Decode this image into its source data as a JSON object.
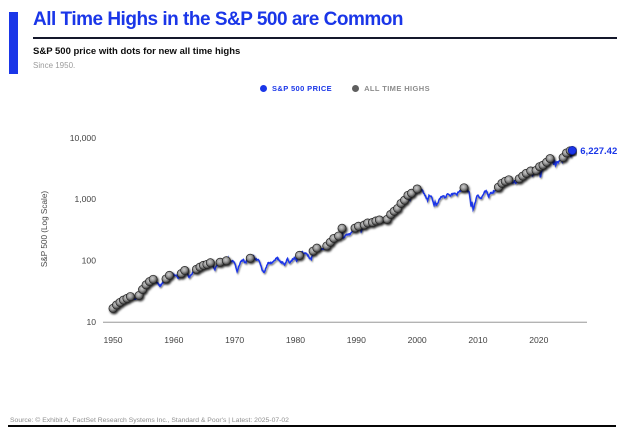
{
  "colors": {
    "accent": "#1a36e8",
    "dot_gray": "#5f5f5f",
    "legend_gray_text": "#8c8c8c",
    "axis_line_gray": "#b3b3b3",
    "tick_text": "#434343"
  },
  "header": {
    "title": "All Time Highs in the S&P 500 are Common",
    "subtitle": "S&P 500 price with dots for new all time highs",
    "since": "Since 1950."
  },
  "legend": [
    {
      "label": "S&P 500 PRICE"
    },
    {
      "label": "ALL TIME HIGHS"
    }
  ],
  "footer": {
    "source": "Source: © Exhibit A, FactSet Research Systems Inc., Standard & Poor's | Latest: 2025-07-02"
  },
  "chart_data": {
    "type": "line",
    "title": "All Time Highs in the S&P 500 are Common",
    "subtitle": "S&P 500 price with dots for new all time highs",
    "ylabel": "S&P 500 (Log Scale)",
    "yscale": "log",
    "xlim": [
      1948.4,
      2027.9
    ],
    "ylim": [
      10,
      22000
    ],
    "grid": "bottom-axis-only",
    "legend_position": "top-center",
    "x_axis": {
      "ticks": [
        1950,
        1960,
        1970,
        1980,
        1990,
        2000,
        2010,
        2020
      ]
    },
    "y_axis": {
      "ticks": [
        {
          "value": 10000,
          "label": "10,000"
        },
        {
          "value": 1000,
          "label": "1,000"
        },
        {
          "value": 100,
          "label": "100"
        },
        {
          "value": 10,
          "label": "10"
        }
      ]
    },
    "markers": {
      "name": "All Time Highs",
      "rule": "gray dot wherever the price sets a new all-time high"
    },
    "last_point": {
      "year": 2025.5,
      "value": 6227.42
    },
    "last_value_label": "6,227.42",
    "series": [
      {
        "name": "S&P 500 Price",
        "points": [
          [
            1950,
            16.7
          ],
          [
            1950.5,
            18.7
          ],
          [
            1951,
            20.4
          ],
          [
            1951.5,
            22
          ],
          [
            1952,
            23.8
          ],
          [
            1952.5,
            24.5
          ],
          [
            1953,
            26.6
          ],
          [
            1953.6,
            23.5
          ],
          [
            1954,
            24.8
          ],
          [
            1954.5,
            29
          ],
          [
            1955,
            36
          ],
          [
            1955.5,
            41
          ],
          [
            1956,
            45.5
          ],
          [
            1956.6,
            49.6
          ],
          [
            1957,
            46.7
          ],
          [
            1957.8,
            39
          ],
          [
            1958,
            40.3
          ],
          [
            1958.5,
            47
          ],
          [
            1959,
            55.2
          ],
          [
            1959.6,
            60.5
          ],
          [
            1960,
            59.9
          ],
          [
            1960.8,
            52.3
          ],
          [
            1961,
            58.1
          ],
          [
            1961.5,
            66
          ],
          [
            1962,
            71.6
          ],
          [
            1962.5,
            52.3
          ],
          [
            1963,
            63.1
          ],
          [
            1963.5,
            70
          ],
          [
            1964,
            75
          ],
          [
            1964.5,
            81
          ],
          [
            1965,
            84.8
          ],
          [
            1965.5,
            87
          ],
          [
            1966,
            92.4
          ],
          [
            1966.15,
            94.1
          ],
          [
            1966.75,
            73.2
          ],
          [
            1967,
            80.3
          ],
          [
            1967.75,
            97.6
          ],
          [
            1968,
            96.5
          ],
          [
            1968.2,
            87.7
          ],
          [
            1968.92,
            108.4
          ],
          [
            1969,
            103.9
          ],
          [
            1969.6,
            97
          ],
          [
            1970,
            92.1
          ],
          [
            1970.4,
            69.3
          ],
          [
            1971,
            92.2
          ],
          [
            1971.35,
            104.8
          ],
          [
            1971.85,
            90.2
          ],
          [
            1972,
            102.1
          ],
          [
            1972.5,
            108
          ],
          [
            1973.03,
            120.2
          ],
          [
            1973.5,
            104
          ],
          [
            1974,
            97.6
          ],
          [
            1974.75,
            62.3
          ],
          [
            1975,
            68.6
          ],
          [
            1975.55,
            95.2
          ],
          [
            1976,
            90.2
          ],
          [
            1976.75,
            107.8
          ],
          [
            1977,
            107.5
          ],
          [
            1977.9,
            92.3
          ],
          [
            1978.2,
            86.9
          ],
          [
            1978.7,
            107
          ],
          [
            1979,
            96.1
          ],
          [
            1979.8,
            111.3
          ],
          [
            1980,
            107.9
          ],
          [
            1980.25,
            98.2
          ],
          [
            1980.92,
            140.5
          ],
          [
            1981,
            135.8
          ],
          [
            1981.6,
            130
          ],
          [
            1982,
            122.6
          ],
          [
            1982.6,
            102.4
          ],
          [
            1982.9,
            143
          ],
          [
            1983,
            140.6
          ],
          [
            1983.8,
            172
          ],
          [
            1984,
            164.9
          ],
          [
            1984.55,
            147.8
          ],
          [
            1985,
            167.2
          ],
          [
            1985.5,
            190
          ],
          [
            1986,
            211.3
          ],
          [
            1986.5,
            245
          ],
          [
            1987,
            242.2
          ],
          [
            1987.65,
            336.8
          ],
          [
            1987.8,
            225
          ],
          [
            1988,
            247.1
          ],
          [
            1988.5,
            270
          ],
          [
            1989,
            277.7
          ],
          [
            1989.5,
            320
          ],
          [
            1990,
            353.4
          ],
          [
            1990.55,
            368.9
          ],
          [
            1990.8,
            295.5
          ],
          [
            1991,
            330.2
          ],
          [
            1991.3,
            380
          ],
          [
            1992,
            417.1
          ],
          [
            1992.5,
            410
          ],
          [
            1993,
            435.7
          ],
          [
            1993.5,
            450
          ],
          [
            1994,
            466.5
          ],
          [
            1994.3,
            438.9
          ],
          [
            1995,
            459.3
          ],
          [
            1995.5,
            545
          ],
          [
            1996,
            615.9
          ],
          [
            1996.55,
            670
          ],
          [
            1997,
            740.7
          ],
          [
            1997.55,
            930
          ],
          [
            1998,
            970.4
          ],
          [
            1998.55,
            1186.8
          ],
          [
            1998.8,
            957.3
          ],
          [
            1999,
            1229.2
          ],
          [
            1999.55,
            1420
          ],
          [
            1999.8,
            1280
          ],
          [
            2000,
            1469.3
          ],
          [
            2000.22,
            1527.5
          ],
          [
            2000.65,
            1430
          ],
          [
            2001,
            1320.3
          ],
          [
            2001.72,
            965.8
          ],
          [
            2001.95,
            1140
          ],
          [
            2002.3,
            1170
          ],
          [
            2002.78,
            776.8
          ],
          [
            2002.95,
            936.3
          ],
          [
            2003.2,
            800.7
          ],
          [
            2003.8,
            1050
          ],
          [
            2004,
            1111.9
          ],
          [
            2004.6,
            1063.2
          ],
          [
            2005,
            1211.9
          ],
          [
            2005.3,
            1137.5
          ],
          [
            2006,
            1248.3
          ],
          [
            2006.55,
            1223.7
          ],
          [
            2007,
            1418.3
          ],
          [
            2007.4,
            1420
          ],
          [
            2007.78,
            1565.2
          ],
          [
            2008,
            1468.4
          ],
          [
            2008.55,
            1280
          ],
          [
            2008.87,
            752.4
          ],
          [
            2009,
            903.3
          ],
          [
            2009.2,
            676.5
          ],
          [
            2009.8,
            1097
          ],
          [
            2010,
            1115.1
          ],
          [
            2010.52,
            1022.6
          ],
          [
            2011,
            1257.6
          ],
          [
            2011.35,
            1363.6
          ],
          [
            2011.77,
            1099.2
          ],
          [
            2012,
            1257.6
          ],
          [
            2012.45,
            1278
          ],
          [
            2013,
            1426.2
          ],
          [
            2013.5,
            1631
          ],
          [
            2014,
            1848.4
          ],
          [
            2014.55,
            1972
          ],
          [
            2014.8,
            1862.5
          ],
          [
            2015,
            2058.9
          ],
          [
            2015.4,
            2130.8
          ],
          [
            2015.66,
            1867.6
          ],
          [
            2016,
            2043.9
          ],
          [
            2016.13,
            1829.1
          ],
          [
            2016.85,
            2190
          ],
          [
            2017,
            2238.8
          ],
          [
            2017.5,
            2440
          ],
          [
            2018,
            2673.6
          ],
          [
            2018.08,
            2872.9
          ],
          [
            2018.17,
            2581
          ],
          [
            2018.74,
            2930.8
          ],
          [
            2018.95,
            2351.1
          ],
          [
            2019.15,
            2700
          ],
          [
            2019.55,
            2945
          ],
          [
            2019.65,
            2847
          ],
          [
            2020,
            3230.8
          ],
          [
            2020.13,
            3386.2
          ],
          [
            2020.24,
            2237.4
          ],
          [
            2020.68,
            3580
          ],
          [
            2020.75,
            3270
          ],
          [
            2021,
            3756.1
          ],
          [
            2021.55,
            4255
          ],
          [
            2022,
            4766.2
          ],
          [
            2022.17,
            4170
          ],
          [
            2022.25,
            4631.6
          ],
          [
            2022.47,
            3666.8
          ],
          [
            2022.6,
            4305.2
          ],
          [
            2022.78,
            3577
          ],
          [
            2022.92,
            4080.1
          ],
          [
            2023.1,
            3855.8
          ],
          [
            2023.58,
            4588.9
          ],
          [
            2023.83,
            4117.4
          ],
          [
            2024,
            4769.8
          ],
          [
            2024.3,
            5254.3
          ],
          [
            2024.55,
            5667.2
          ],
          [
            2024.62,
            5186.3
          ],
          [
            2024.93,
            6090.3
          ],
          [
            2025.05,
            5881.6
          ],
          [
            2025.15,
            6144.2
          ],
          [
            2025.28,
            4982.8
          ],
          [
            2025.5,
            6227.42
          ]
        ]
      }
    ]
  }
}
